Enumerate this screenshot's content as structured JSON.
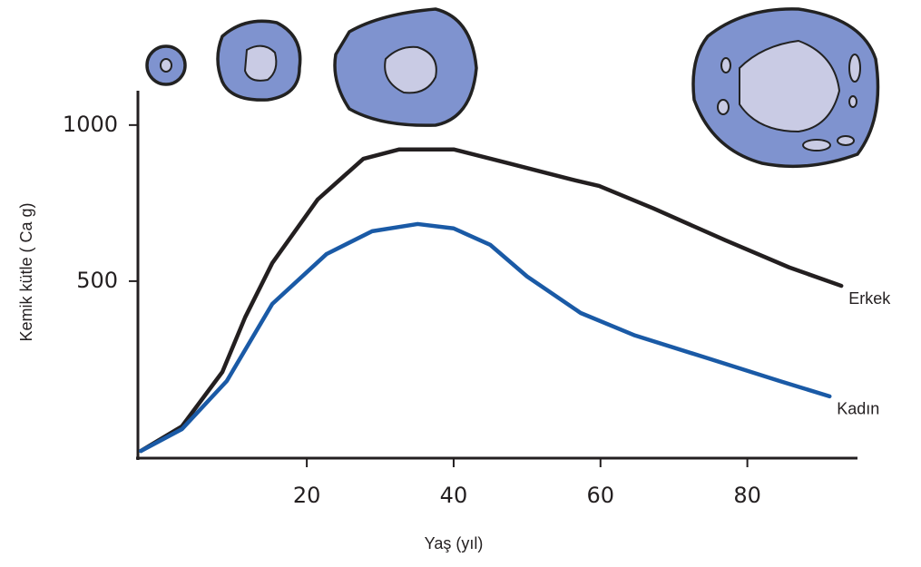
{
  "chart_data": {
    "type": "line",
    "x_label": "Yaş (yıl)",
    "y_label": "Kemik kütle ( Ca g)",
    "xlim": [
      -3,
      95
    ],
    "ylim": [
      -67,
      1110
    ],
    "xticks": [
      20,
      40,
      60,
      80
    ],
    "yticks": [
      500,
      1000
    ],
    "series": [
      {
        "name": "Erkek",
        "color": "#231f20",
        "x": [
          -2.6,
          3,
          8.5,
          11.6,
          15.3,
          21.5,
          27.7,
          32.6,
          40,
          47.4,
          56,
          59.8,
          67.2,
          77,
          85.7,
          92.8
        ],
        "values": [
          -44,
          35,
          209,
          384,
          558,
          762,
          892,
          922,
          922,
          878,
          826,
          805,
          733,
          631,
          544,
          485
        ]
      },
      {
        "name": "Kadın",
        "color": "#1a5aa6",
        "x": [
          -2.6,
          3,
          9.1,
          15.3,
          22.7,
          28.9,
          35.1,
          40,
          45,
          50,
          57.3,
          64.7,
          74.6,
          84.4,
          91.2
        ],
        "values": [
          -44,
          26,
          180,
          427,
          587,
          660,
          683,
          669,
          616,
          515,
          398,
          326,
          253,
          180,
          131
        ]
      }
    ]
  }
}
